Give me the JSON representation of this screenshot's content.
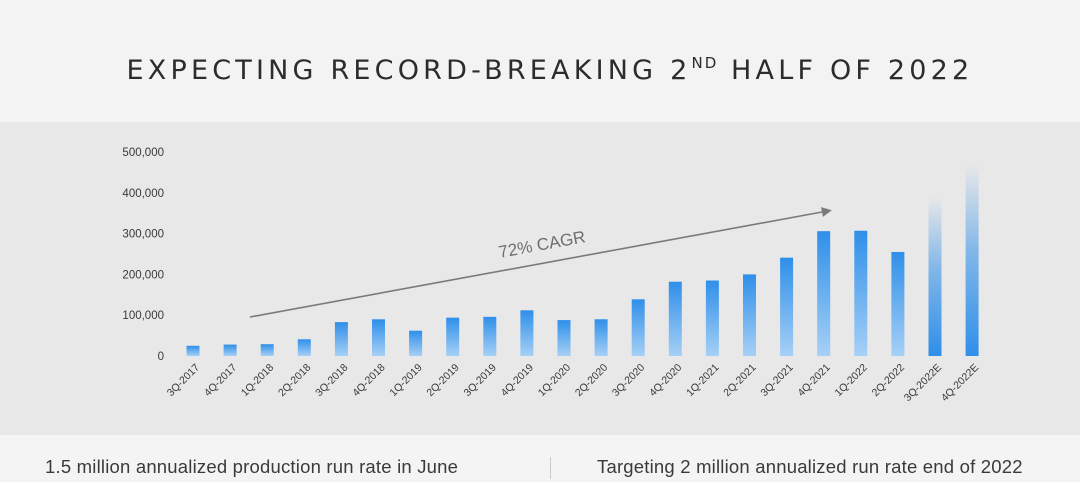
{
  "slide": {
    "title_main": "EXPECTING RECORD-BREAKING 2",
    "title_sup": "ND",
    "title_end": " HALF OF 2022"
  },
  "footer": {
    "left_text": "1.5 million annualized production run rate in June",
    "right_text": "Targeting 2 million annualized run rate end of 2022"
  },
  "colors": {
    "bar_top": "#2f8fe9",
    "bar_bottom": "#a6d0f6",
    "arrow": "#7a7a7a",
    "axis_text": "#3a3a3a"
  },
  "chart_data": {
    "type": "bar",
    "title": "EXPECTING RECORD-BREAKING 2ND HALF OF 2022",
    "xlabel": "",
    "ylabel": "",
    "ylim": [
      0,
      500000
    ],
    "yticks": [
      0,
      100000,
      200000,
      300000,
      400000,
      500000
    ],
    "ytick_labels": [
      "0",
      "100,000",
      "200,000",
      "300,000",
      "400,000",
      "500,000"
    ],
    "categories": [
      "3Q-2017",
      "4Q-2017",
      "1Q-2018",
      "2Q-2018",
      "3Q-2018",
      "4Q-2018",
      "1Q-2019",
      "2Q-2019",
      "3Q-2019",
      "4Q-2019",
      "1Q-2020",
      "2Q-2020",
      "3Q-2020",
      "4Q-2020",
      "1Q-2021",
      "2Q-2021",
      "3Q-2021",
      "4Q-2021",
      "1Q-2022",
      "2Q-2022",
      "3Q-2022E",
      "4Q-2022E"
    ],
    "values": [
      25000,
      28000,
      29000,
      41000,
      83000,
      90000,
      62000,
      94000,
      96000,
      112000,
      88000,
      90000,
      139000,
      182000,
      185000,
      200000,
      241000,
      306000,
      307000,
      255000,
      390000,
      470000
    ],
    "estimated": [
      false,
      false,
      false,
      false,
      false,
      false,
      false,
      false,
      false,
      false,
      false,
      false,
      false,
      false,
      false,
      false,
      false,
      false,
      false,
      false,
      true,
      true
    ],
    "grid": false,
    "annotations": [
      {
        "text": "72% CAGR",
        "kind": "trend-arrow"
      }
    ]
  }
}
